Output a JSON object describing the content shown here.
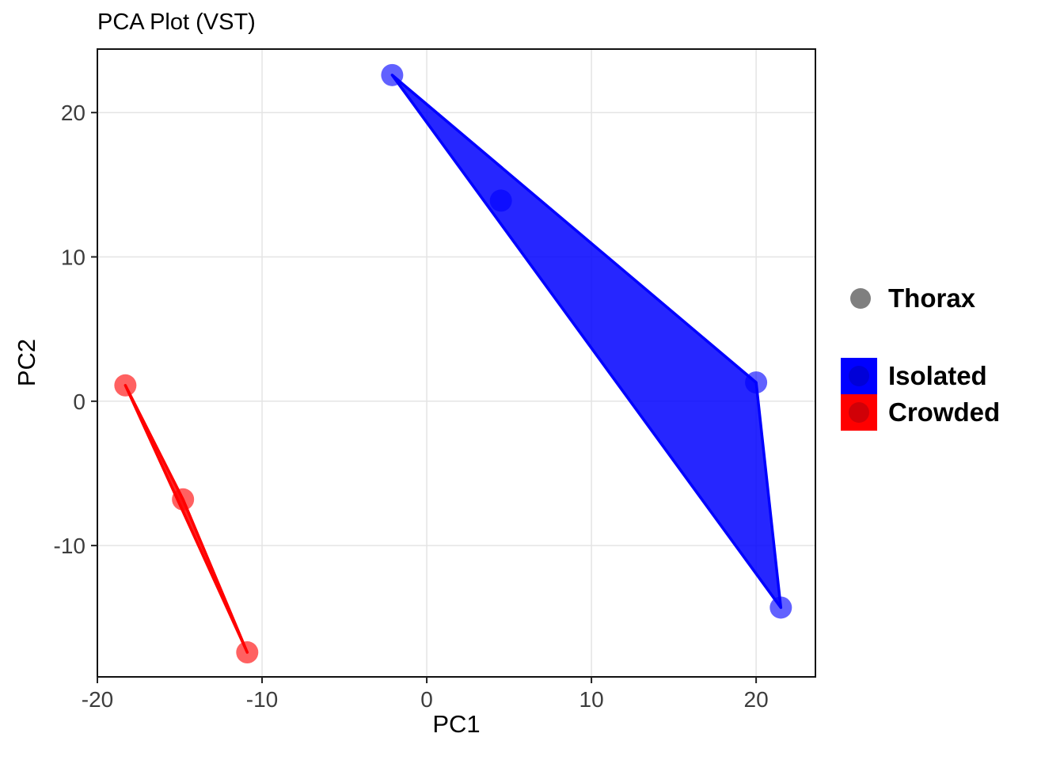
{
  "title": "PCA Plot (VST)",
  "axes": {
    "x_label": "PC1",
    "y_label": "PC2"
  },
  "legend": {
    "shape_entry": {
      "label": "Thorax",
      "swatch_color": "#7f7f7f"
    },
    "fill_entries": [
      {
        "label": "Isolated",
        "color": "#0000ff"
      },
      {
        "label": "Crowded",
        "color": "#ff0000"
      }
    ]
  },
  "chart_data": {
    "type": "scatter",
    "title": "PCA Plot (VST)",
    "xlabel": "PC1",
    "ylabel": "PC2",
    "xlim": [
      -20.0,
      23.6
    ],
    "ylim": [
      -19.1,
      24.4
    ],
    "x_ticks": [
      -20,
      -10,
      0,
      10,
      20
    ],
    "y_ticks": [
      -10,
      0,
      10,
      20
    ],
    "grid": "major",
    "legend_position": "right",
    "panel_background": "#ffffff",
    "grid_color": "#e4e4e4",
    "series": [
      {
        "name": "Isolated",
        "color": "#0000ff",
        "points": [
          [
            -2.1,
            22.6
          ],
          [
            4.5,
            13.9
          ],
          [
            20.0,
            1.3
          ],
          [
            21.5,
            -14.3
          ]
        ],
        "hull": [
          [
            -2.1,
            22.6
          ],
          [
            20.0,
            1.3
          ],
          [
            21.5,
            -14.3
          ]
        ]
      },
      {
        "name": "Crowded",
        "color": "#ff0000",
        "points": [
          [
            -18.3,
            1.1
          ],
          [
            -14.8,
            -6.8
          ],
          [
            -10.9,
            -17.4
          ]
        ],
        "hull": [
          [
            -18.3,
            1.1
          ],
          [
            -14.8,
            -6.8
          ],
          [
            -10.9,
            -17.4
          ]
        ]
      }
    ]
  }
}
